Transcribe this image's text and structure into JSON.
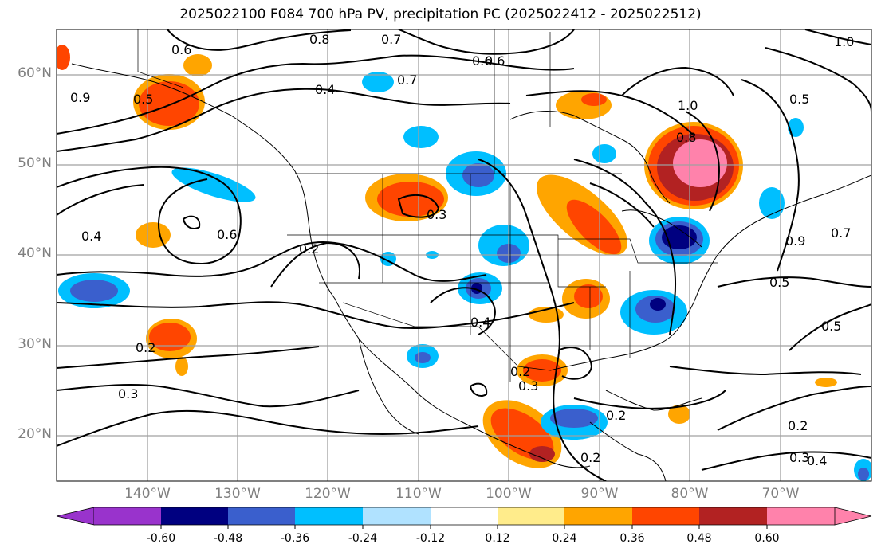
{
  "title": "2025022100 F084 700 hPa PV, precipitation PC (2025022412 - 2025022512)",
  "latitude_labels": [
    "60°N",
    "50°N",
    "40°N",
    "30°N",
    "20°N"
  ],
  "longitude_labels": [
    "140°W",
    "130°W",
    "120°W",
    "110°W",
    "100°W",
    "90°W",
    "80°W",
    "70°W"
  ],
  "colorbar": {
    "ticks": [
      "-0.60",
      "-0.48",
      "-0.36",
      "-0.24",
      "-0.12",
      "0.12",
      "0.24",
      "0.36",
      "0.48",
      "0.60"
    ],
    "colors": [
      "#9933cc",
      "#000080",
      "#3a5fcd",
      "#00bfff",
      "#b0e2ff",
      "#ffffff",
      "#ffec8b",
      "#ffa500",
      "#ff4500",
      "#b22222",
      "#ff82ab"
    ]
  },
  "contour_labels": [
    "0.6",
    "0.8",
    "0.7",
    "0.6",
    "0.7",
    "1.0",
    "0.4",
    "0.5",
    "0.9",
    "1.0",
    "0.8",
    "0.5",
    "0.4",
    "0.6",
    "0.3",
    "0.2",
    "0.5",
    "0.2",
    "0.4",
    "0.2",
    "0.3",
    "0.3",
    "0.2",
    "0.2",
    "0.5",
    "0.2",
    "0.3",
    "0.4",
    "0.7",
    "0.9",
    "0.6"
  ]
}
